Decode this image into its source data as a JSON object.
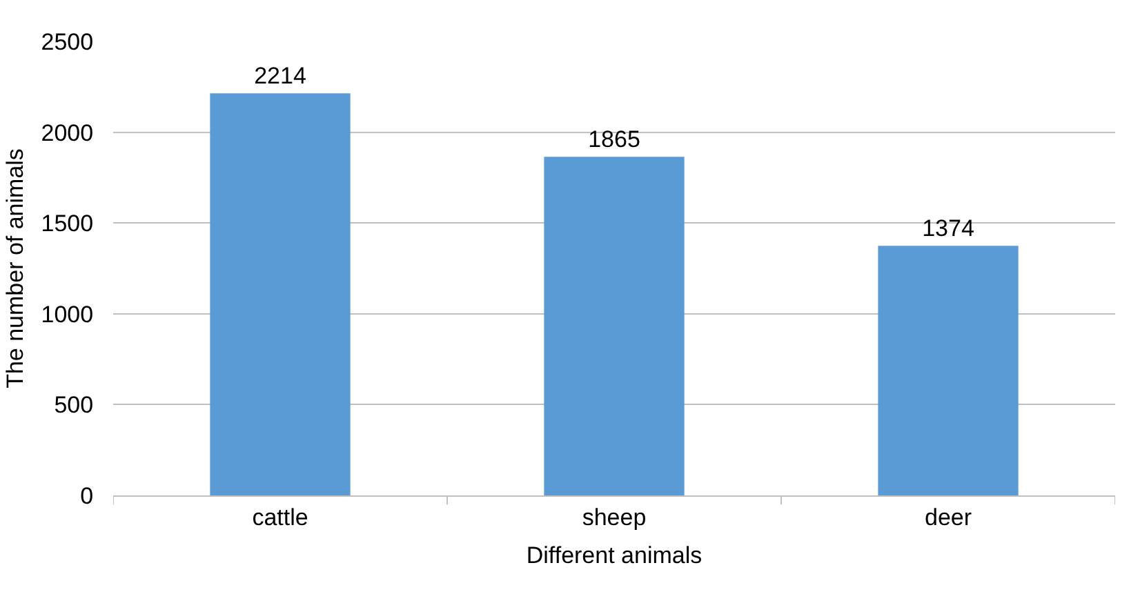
{
  "chart_data": {
    "type": "bar",
    "xlabel": "Different animals",
    "ylabel": "The number of animals",
    "categories": [
      "cattle",
      "sheep",
      "deer"
    ],
    "values": [
      2214,
      1865,
      1374
    ],
    "color": "#5b9bd5",
    "ylim": [
      0,
      2500
    ],
    "yticks": [
      0,
      500,
      1000,
      1500,
      2000,
      2500
    ],
    "grid": "y",
    "data_labels": true
  }
}
